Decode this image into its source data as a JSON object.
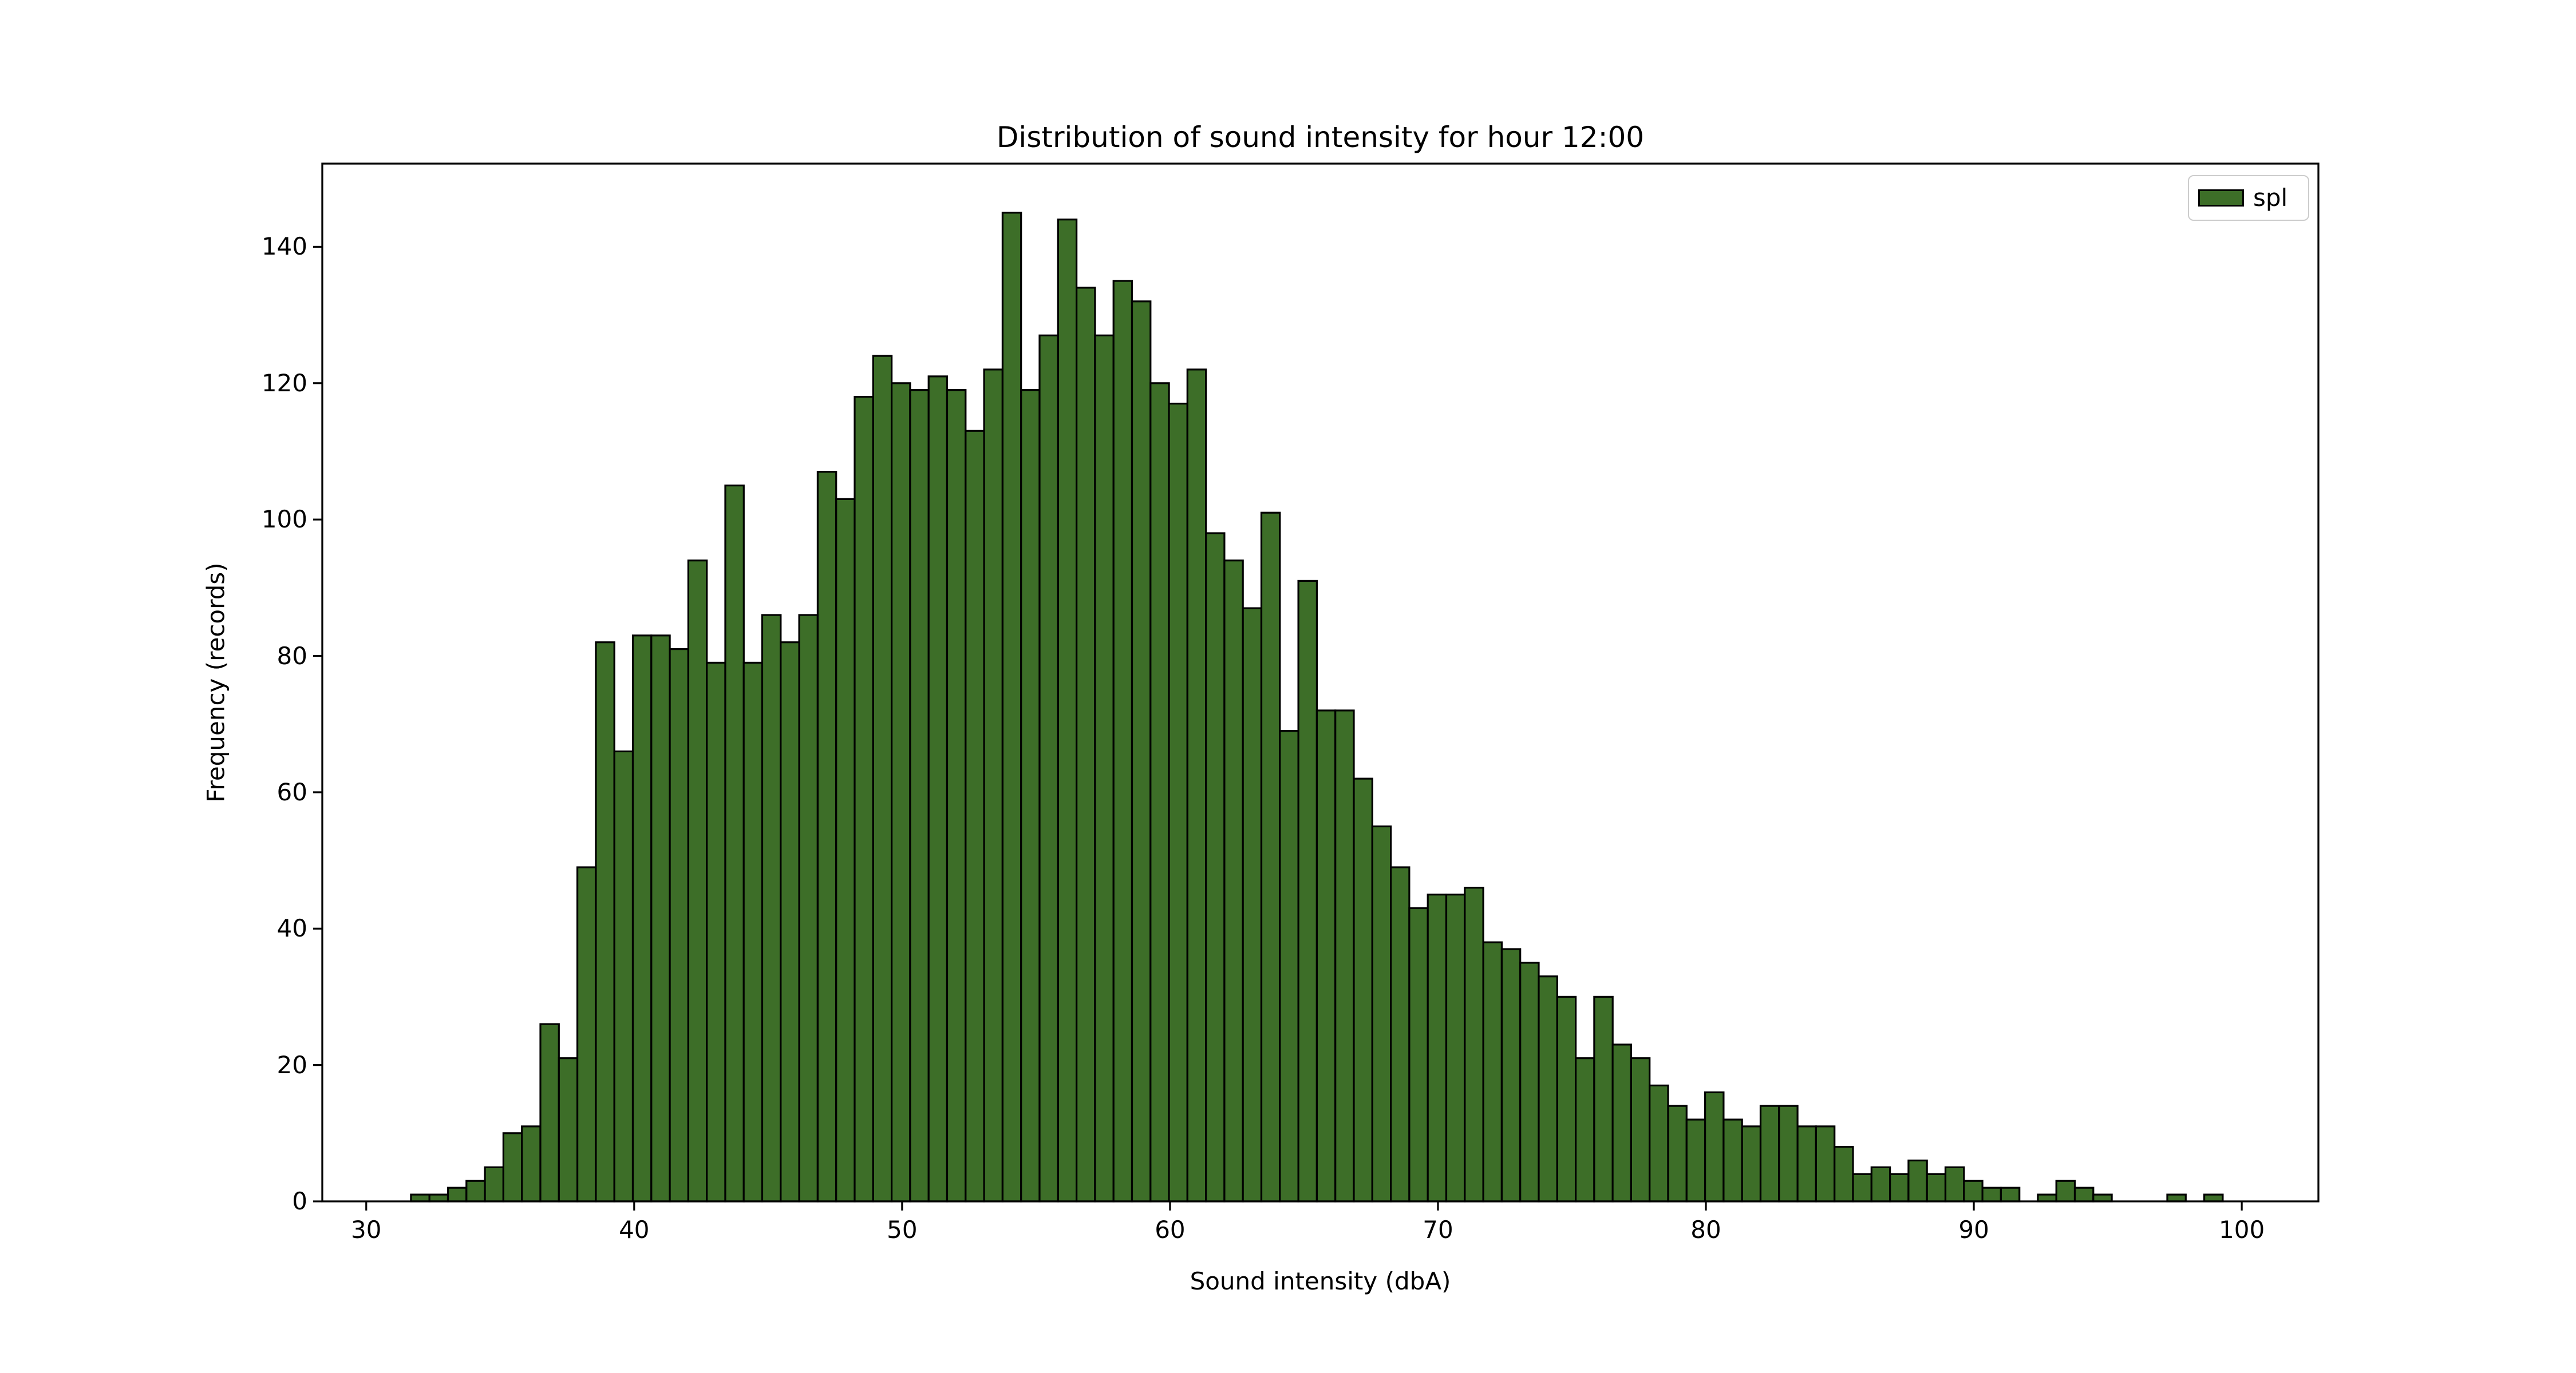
{
  "chart_data": {
    "type": "bar",
    "subtype": "histogram",
    "title": "Distribution of sound intensity for hour 12:00",
    "xlabel": "Sound intensity (dbA)",
    "ylabel": "Frequency (records)",
    "legend_entries": [
      "spl"
    ],
    "legend_position": "upper right",
    "bar_color": "#3d6e28",
    "bar_edge_color": "#000000",
    "background_color": "#ffffff",
    "grid": false,
    "bin_start": 31.67,
    "bin_width": 0.69,
    "values": [
      1,
      1,
      2,
      3,
      5,
      10,
      11,
      26,
      21,
      49,
      82,
      66,
      83,
      83,
      81,
      94,
      79,
      105,
      79,
      86,
      82,
      86,
      107,
      103,
      118,
      124,
      120,
      119,
      121,
      119,
      113,
      122,
      145,
      119,
      127,
      144,
      134,
      127,
      135,
      132,
      120,
      117,
      122,
      98,
      94,
      87,
      101,
      69,
      91,
      72,
      72,
      62,
      55,
      49,
      43,
      45,
      45,
      46,
      38,
      37,
      35,
      33,
      30,
      21,
      30,
      23,
      21,
      17,
      14,
      12,
      16,
      12,
      11,
      14,
      14,
      11,
      11,
      8,
      4,
      5,
      4,
      6,
      4,
      5,
      3,
      2,
      2,
      0,
      1,
      3,
      2,
      1,
      0,
      0,
      0,
      1,
      0,
      1
    ],
    "x_ticks": [
      30,
      40,
      50,
      60,
      70,
      80,
      90,
      100
    ],
    "y_ticks": [
      0,
      20,
      40,
      60,
      80,
      100,
      120,
      140
    ],
    "xlim": [
      28.36,
      102.86
    ],
    "ylim": [
      0,
      152.2
    ]
  }
}
